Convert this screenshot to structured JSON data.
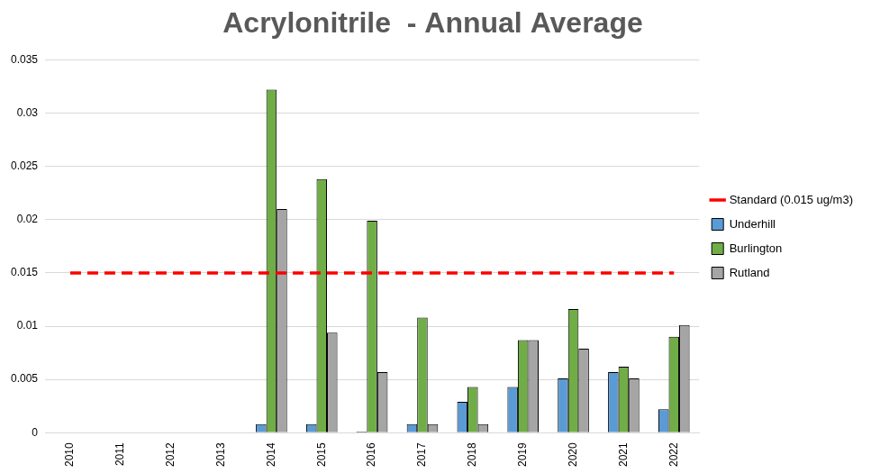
{
  "chart_data": {
    "type": "bar",
    "title": "Acrylonitrile  - Annual Average",
    "categories": [
      "2010",
      "2011",
      "2012",
      "2013",
      "2014",
      "2015",
      "2016",
      "2017",
      "2018",
      "2019",
      "2020",
      "2021",
      "2022"
    ],
    "series": [
      {
        "name": "Underhill",
        "color": "#5b9bd5",
        "values": [
          null,
          null,
          null,
          null,
          0.0008,
          0.0008,
          0.0001,
          0.0008,
          0.0029,
          0.0043,
          0.0051,
          0.0057,
          0.0022
        ]
      },
      {
        "name": "Burlington",
        "color": "#70ad47",
        "values": [
          null,
          null,
          null,
          null,
          0.0322,
          0.0238,
          0.0199,
          0.0108,
          0.0043,
          0.0087,
          0.0116,
          0.0062,
          0.009
        ]
      },
      {
        "name": "Rutland",
        "color": "#a5a5a5",
        "values": [
          null,
          null,
          null,
          null,
          0.021,
          0.0094,
          0.0057,
          0.0008,
          0.0008,
          0.0087,
          0.0079,
          0.0051,
          0.0101
        ]
      },
      {
        "name": "Standard (0.015 ug/m3)",
        "color": "#ff0000",
        "type": "line",
        "line_style": "dashed",
        "values": [
          0.015,
          0.015,
          0.015,
          0.015,
          0.015,
          0.015,
          0.015,
          0.015,
          0.015,
          0.015,
          0.015,
          0.015,
          0.015
        ]
      }
    ],
    "ylim": [
      0,
      0.035
    ],
    "yticks": [
      0,
      0.005,
      0.01,
      0.015,
      0.02,
      0.025,
      0.03,
      0.035
    ],
    "grid": true,
    "legend": "right"
  }
}
